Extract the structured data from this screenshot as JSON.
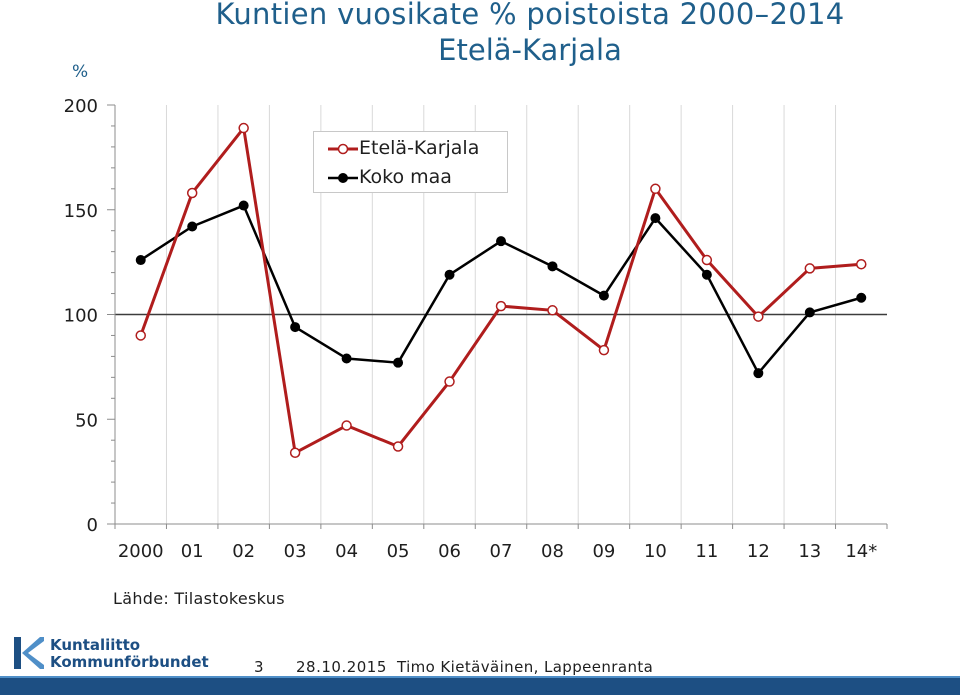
{
  "header": {
    "title_line1": "Kuntien vuosikate % poistoista 2000–2014",
    "title_line2": "Etelä-Karjala",
    "unit_label": "%"
  },
  "chart_data": {
    "type": "line",
    "title": "Kuntien vuosikate % poistoista 2000–2014 Etelä-Karjala",
    "ylabel": "%",
    "xlabel": "",
    "ylim": [
      0,
      200
    ],
    "yticks": [
      "0",
      "50",
      "100",
      "150",
      "200"
    ],
    "reference_line": 100,
    "categories": [
      "2000",
      "01",
      "02",
      "03",
      "04",
      "05",
      "06",
      "07",
      "08",
      "09",
      "10",
      "11",
      "12",
      "13",
      "14*"
    ],
    "series": [
      {
        "name": "Etelä-Karjala",
        "color": "#b01d1d",
        "marker": "open-circle",
        "values": [
          90,
          158,
          189,
          34,
          47,
          37,
          68,
          104,
          102,
          83,
          160,
          126,
          99,
          122,
          124
        ]
      },
      {
        "name": "Koko maa",
        "color": "#000000",
        "marker": "filled-circle",
        "values": [
          126,
          142,
          152,
          94,
          79,
          77,
          119,
          135,
          123,
          109,
          146,
          119,
          72,
          101,
          108
        ]
      }
    ],
    "legend_position": "top-center",
    "grid": "vertical"
  },
  "footer": {
    "source": "Lähde: Tilastokeskus",
    "logo_line1": "Kuntaliitto",
    "logo_line2": "Kommunförbundet",
    "page_number": "3",
    "date": "28.10.2015",
    "author": "Timo Kietäväinen, Lappeenranta",
    "accent_color": "#1d4f83"
  }
}
